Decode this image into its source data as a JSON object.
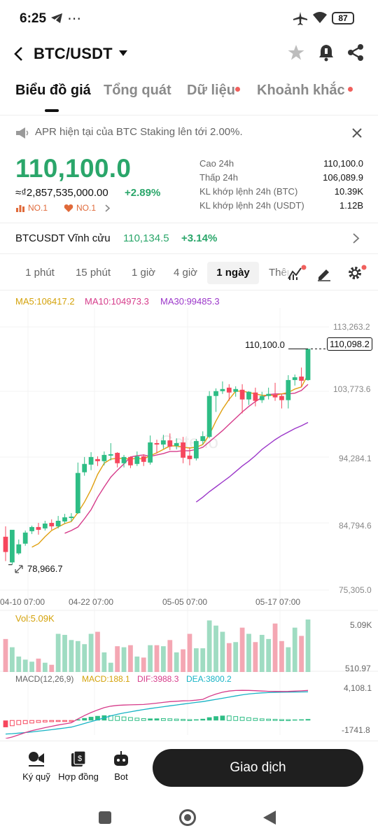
{
  "status": {
    "time": "6:25",
    "battery": "87"
  },
  "header": {
    "pair": "BTC/USDT"
  },
  "tabs": [
    {
      "label": "Biểu đồ giá",
      "dot": false
    },
    {
      "label": "Tổng quát",
      "dot": false
    },
    {
      "label": "Dữ liệu",
      "dot": true
    },
    {
      "label": "Khoảnh khắc",
      "dot": true
    }
  ],
  "announcement": "APR hiện tại của BTC Staking lên tới 2.00%.",
  "price": {
    "last": "110,100.0",
    "approx": "≈₫2,857,535,000.00",
    "change": "+2.89%",
    "badge1": "NO.1",
    "badge2": "NO.1"
  },
  "stats": [
    {
      "label": "Cao 24h",
      "value": "110,100.0"
    },
    {
      "label": "Thấp 24h",
      "value": "106,089.9"
    },
    {
      "label": "KL khớp lệnh 24h (BTC)",
      "value": "10.39K"
    },
    {
      "label": "KL khớp lệnh 24h (USDT)",
      "value": "1.12B"
    }
  ],
  "perpetual": {
    "label": "BTCUSDT Vĩnh cửu",
    "price": "110,134.5",
    "change": "+3.14%"
  },
  "timeframes": [
    "1 phút",
    "15 phút",
    "1 giờ",
    "4 giờ",
    "1 ngày",
    "Thêm"
  ],
  "indicators": {
    "ma5": "MA5:106417.2",
    "ma10": "MA10:104973.3",
    "ma30": "MA30:99485.3",
    "vol": "Vol:5.09K",
    "macd_title": "MACD(12,26,9)",
    "macd": "MACD:188.1",
    "dif": "DIF:3988.3",
    "dea": "DEA:3800.2"
  },
  "chart": {
    "price_axis": [
      "113,263.2",
      "103,773.6",
      "94,284.1",
      "84,794.6",
      "75,305.0"
    ],
    "last_price_label": "110,098.2",
    "high_marker": "110,100.0",
    "low_marker": "78,966.7",
    "dates": [
      "04-10 07:00",
      "04-22 07:00",
      "05-05 07:00",
      "05-17 07:00"
    ],
    "vol_axis": [
      "5.09K",
      "510.97"
    ],
    "macd_axis": [
      "4,108.1",
      "-1741.8"
    ]
  },
  "chart_data": {
    "type": "candlestick",
    "ylim": [
      75305.0,
      113263.2
    ],
    "up_color": "#2ebd85",
    "down_color": "#f6465d",
    "candles": [
      [
        83000,
        84500,
        80800,
        79500
      ],
      [
        79300,
        79800,
        84000,
        78966.7
      ],
      [
        80600,
        82600,
        81900,
        80400
      ],
      [
        82000,
        83900,
        83600,
        81700
      ],
      [
        83800,
        84600,
        84400,
        83400
      ],
      [
        84400,
        85000,
        84000,
        83300
      ],
      [
        84200,
        85300,
        84900,
        83900
      ],
      [
        85000,
        85500,
        84500,
        84000
      ],
      [
        84500,
        86000,
        85300,
        84200
      ],
      [
        85200,
        86300,
        85800,
        84900
      ],
      [
        85700,
        86400,
        85900,
        85200
      ],
      [
        86400,
        93700,
        92200,
        86300
      ],
      [
        92300,
        94500,
        93500,
        91800
      ],
      [
        93400,
        95200,
        94500,
        92600
      ],
      [
        94200,
        94600,
        93900,
        93200
      ],
      [
        93900,
        95300,
        94800,
        93300
      ],
      [
        94700,
        96500,
        94900,
        94000
      ],
      [
        95100,
        95200,
        93600,
        93000
      ],
      [
        93600,
        94800,
        94500,
        93000
      ],
      [
        94500,
        94600,
        93300,
        92900
      ],
      [
        93500,
        95300,
        94600,
        93200
      ],
      [
        94600,
        94900,
        93800,
        93200
      ],
      [
        93700,
        97600,
        96600,
        93400
      ],
      [
        96500,
        97000,
        96300,
        95000
      ],
      [
        96300,
        97700,
        96900,
        95700
      ],
      [
        96900,
        97900,
        96000,
        95500
      ],
      [
        96100,
        97200,
        96500,
        95600
      ],
      [
        96600,
        97400,
        94400,
        93600
      ],
      [
        94700,
        95900,
        94200,
        93300
      ],
      [
        94300,
        97100,
        96800,
        94000
      ],
      [
        96800,
        98200,
        97500,
        96300
      ],
      [
        97400,
        104000,
        103300,
        97200
      ],
      [
        103300,
        104400,
        104000,
        101000
      ],
      [
        104000,
        105400,
        104300,
        103600
      ],
      [
        104500,
        105000,
        103800,
        102600
      ],
      [
        103900,
        104700,
        104300,
        103200
      ],
      [
        104200,
        105000,
        102800,
        100800
      ],
      [
        102800,
        104000,
        103900,
        102000
      ],
      [
        103800,
        104500,
        102600,
        101800
      ],
      [
        102700,
        103900,
        103300,
        102300
      ],
      [
        103300,
        104500,
        103600,
        102800
      ],
      [
        103500,
        105200,
        103100,
        102600
      ],
      [
        103300,
        103600,
        102700,
        101500
      ],
      [
        102700,
        106300,
        105600,
        101500
      ],
      [
        105600,
        106400,
        106000,
        104800
      ],
      [
        106100,
        107400,
        105500,
        104600
      ],
      [
        105600,
        110100,
        110098.2,
        105500
      ]
    ],
    "ma5": [
      null,
      null,
      null,
      null,
      81500,
      82000,
      83000,
      83900,
      84400,
      84900,
      85200,
      86500,
      88000,
      89800,
      92000,
      93600,
      94200,
      94300,
      94300,
      94200,
      94300,
      94200,
      94700,
      95100,
      95600,
      96100,
      96100,
      95900,
      95800,
      95900,
      96300,
      97700,
      99700,
      101400,
      102800,
      104000,
      104000,
      103800,
      103600,
      103400,
      103400,
      103400,
      103600,
      103800,
      104300,
      104600,
      106417.2
    ],
    "ma10": [
      null,
      null,
      null,
      null,
      null,
      null,
      null,
      null,
      null,
      83500,
      83900,
      84400,
      85600,
      86900,
      88700,
      90200,
      91600,
      92600,
      93500,
      94500,
      94700,
      94800,
      94600,
      94800,
      95000,
      95300,
      95300,
      95400,
      95400,
      95600,
      95900,
      96700,
      97500,
      98300,
      99200,
      100100,
      101000,
      101800,
      102500,
      103100,
      103500,
      103600,
      103600,
      103600,
      103700,
      104100,
      104973.3
    ],
    "ma30": [
      null,
      null,
      null,
      null,
      null,
      null,
      null,
      null,
      null,
      null,
      null,
      null,
      null,
      null,
      null,
      null,
      null,
      null,
      null,
      null,
      null,
      null,
      null,
      null,
      null,
      null,
      null,
      null,
      null,
      88000,
      88700,
      89500,
      90200,
      90900,
      91600,
      92400,
      93200,
      93900,
      94700,
      95600,
      96300,
      97000,
      97600,
      98100,
      98600,
      99000,
      99485.3
    ],
    "volumes": [
      3200,
      2400,
      1500,
      1200,
      1000,
      1300,
      900,
      700,
      3700,
      3600,
      3100,
      3000,
      2700,
      3700,
      3900,
      1900,
      900,
      2500,
      2400,
      2600,
      1500,
      1400,
      2600,
      2600,
      2500,
      3100,
      1900,
      2200,
      3700,
      2300,
      2300,
      5000,
      4500,
      3900,
      2800,
      2900,
      4300,
      3700,
      2900,
      3600,
      3200,
      4700,
      3000,
      2400,
      4300,
      3500,
      5090
    ],
    "macd_hist": [
      -900,
      -700,
      -550,
      -420,
      -340,
      -260,
      -200,
      -160,
      -100,
      -60,
      -20,
      150,
      320,
      480,
      600,
      680,
      640,
      560,
      470,
      390,
      310,
      250,
      260,
      270,
      250,
      230,
      190,
      150,
      120,
      150,
      220,
      420,
      560,
      640,
      600,
      520,
      440,
      360,
      280,
      220,
      180,
      150,
      120,
      110,
      130,
      150,
      188.1
    ],
    "dif": [
      -2400,
      -2200,
      -1900,
      -1600,
      -1350,
      -1150,
      -950,
      -780,
      -600,
      -450,
      -300,
      200,
      650,
      1050,
      1400,
      1700,
      1900,
      2000,
      2050,
      2070,
      2100,
      2120,
      2200,
      2300,
      2400,
      2500,
      2550,
      2600,
      2620,
      2700,
      2800,
      3200,
      3500,
      3750,
      3900,
      3980,
      4000,
      3990,
      3950,
      3900,
      3870,
      3860,
      3850,
      3860,
      3890,
      3930,
      3988.3
    ],
    "dea": [
      -1800,
      -1750,
      -1680,
      -1600,
      -1520,
      -1420,
      -1320,
      -1220,
      -1110,
      -1000,
      -880,
      -650,
      -400,
      -150,
      100,
      350,
      600,
      820,
      1000,
      1150,
      1300,
      1450,
      1580,
      1700,
      1820,
      1940,
      2060,
      2180,
      2290,
      2400,
      2500,
      2650,
      2800,
      2950,
      3100,
      3250,
      3400,
      3510,
      3600,
      3660,
      3700,
      3730,
      3750,
      3760,
      3770,
      3780,
      3800.2
    ]
  }
}
